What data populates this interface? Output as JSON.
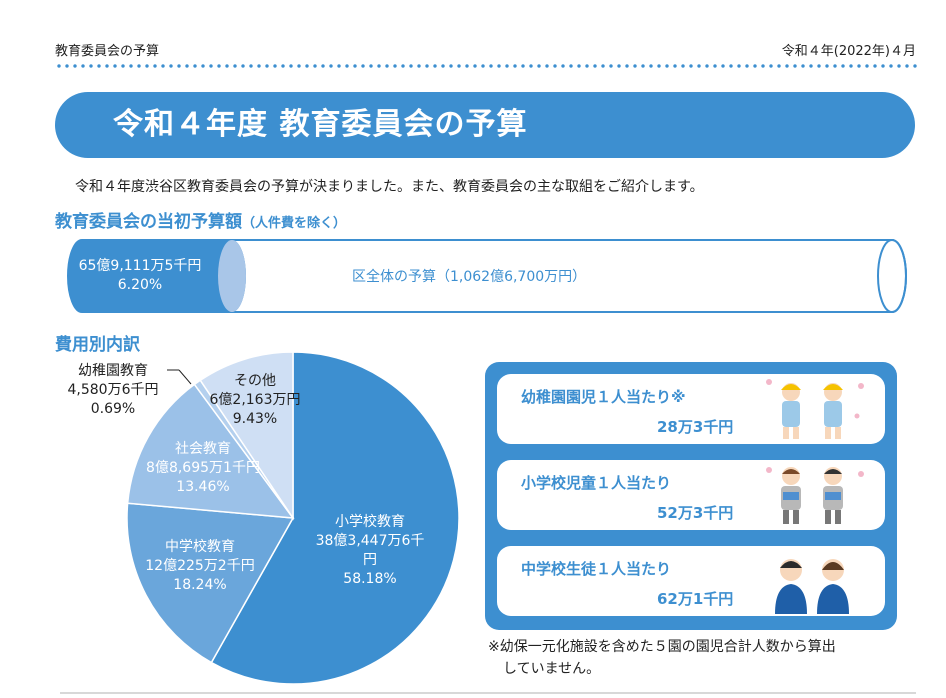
{
  "header": {
    "left": "教育委員会の予算",
    "right": "令和４年(2022年)４月"
  },
  "title": "令和４年度 教育委員会の予算",
  "intro": "令和４年度渋谷区教育委員会の予算が決まりました。また、教育委員会の主な取組をご紹介します。",
  "budget": {
    "heading": "教育委員会の当初予算額",
    "heading_note": "（人件費を除く）",
    "education_amount": "65億9,111万5千円",
    "education_pct": "6.20%",
    "ward_total": "区全体の予算（1,062億6,700万円）"
  },
  "breakdown": {
    "heading": "費用別内訳"
  },
  "chart_data": {
    "type": "pie",
    "slices": [
      {
        "label": "小学校教育",
        "amount": "38億3,447万6千円",
        "percent_text": "58.18%",
        "value": 58.18,
        "color": "#3d8fd0"
      },
      {
        "label": "中学校教育",
        "amount": "12億225万2千円",
        "percent_text": "18.24%",
        "value": 18.24,
        "color": "#6aa6db"
      },
      {
        "label": "社会教育",
        "amount": "8億8,695万1千円",
        "percent_text": "13.46%",
        "value": 13.46,
        "color": "#9bc1e8"
      },
      {
        "label": "幼稚園教育",
        "amount": "4,580万6千円",
        "percent_text": "0.69%",
        "value": 0.69,
        "color": "#b4d0ee"
      },
      {
        "label": "その他",
        "amount": "6億2,163万円",
        "percent_text": "9.43%",
        "value": 9.43,
        "color": "#cfdff4"
      }
    ]
  },
  "per_child": [
    {
      "title": "幼稚園園児１人当たり※",
      "value": "28万3千円",
      "icon": "kindergarten-children-icon"
    },
    {
      "title": "小学校児童１人当たり",
      "value": "52万3千円",
      "icon": "elementary-students-icon"
    },
    {
      "title": "中学校生徒１人当たり",
      "value": "62万1千円",
      "icon": "junior-high-students-icon"
    }
  ],
  "note_lines": [
    "※幼保一元化施設を含めた５園の園児合計人数から算出",
    "していません。"
  ],
  "colors": {
    "accent": "#3d8fd0",
    "light": "#b4cde9"
  }
}
